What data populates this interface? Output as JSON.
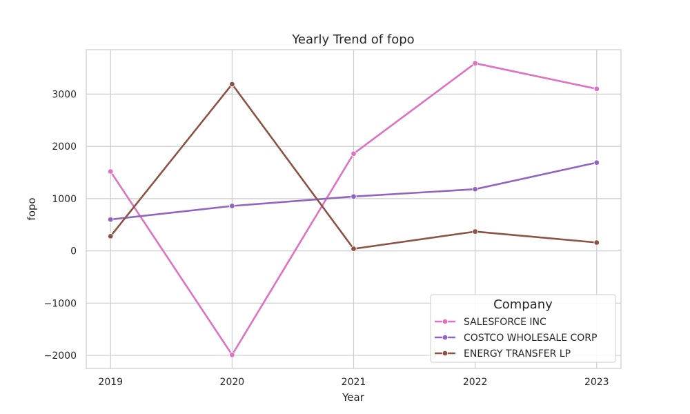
{
  "chart_data": {
    "type": "line",
    "title": "Yearly Trend of fopo",
    "xlabel": "Year",
    "ylabel": "fopo",
    "x": [
      2019,
      2020,
      2021,
      2022,
      2023
    ],
    "x_tick_labels": [
      "2019",
      "2020",
      "2021",
      "2022",
      "2023"
    ],
    "y_ticks": [
      -2000,
      -1000,
      0,
      1000,
      2000,
      3000
    ],
    "y_tick_labels": [
      "−2000",
      "−1000",
      "0",
      "1000",
      "2000",
      "3000"
    ],
    "ylim": [
      -2250,
      3850
    ],
    "xlim": [
      2018.8,
      2023.2
    ],
    "grid": true,
    "legend": {
      "title": "Company",
      "placement": "lower-right"
    },
    "series": [
      {
        "name": "SALESFORCE INC",
        "color": "#dd72c2",
        "values": [
          1520,
          -1990,
          1860,
          3590,
          3100
        ]
      },
      {
        "name": "COSTCO WHOLESALE CORP",
        "color": "#9164c0",
        "values": [
          600,
          860,
          1040,
          1180,
          1690
        ]
      },
      {
        "name": "ENERGY TRANSFER LP",
        "color": "#8c5344",
        "values": [
          280,
          3190,
          40,
          370,
          160
        ]
      }
    ]
  }
}
